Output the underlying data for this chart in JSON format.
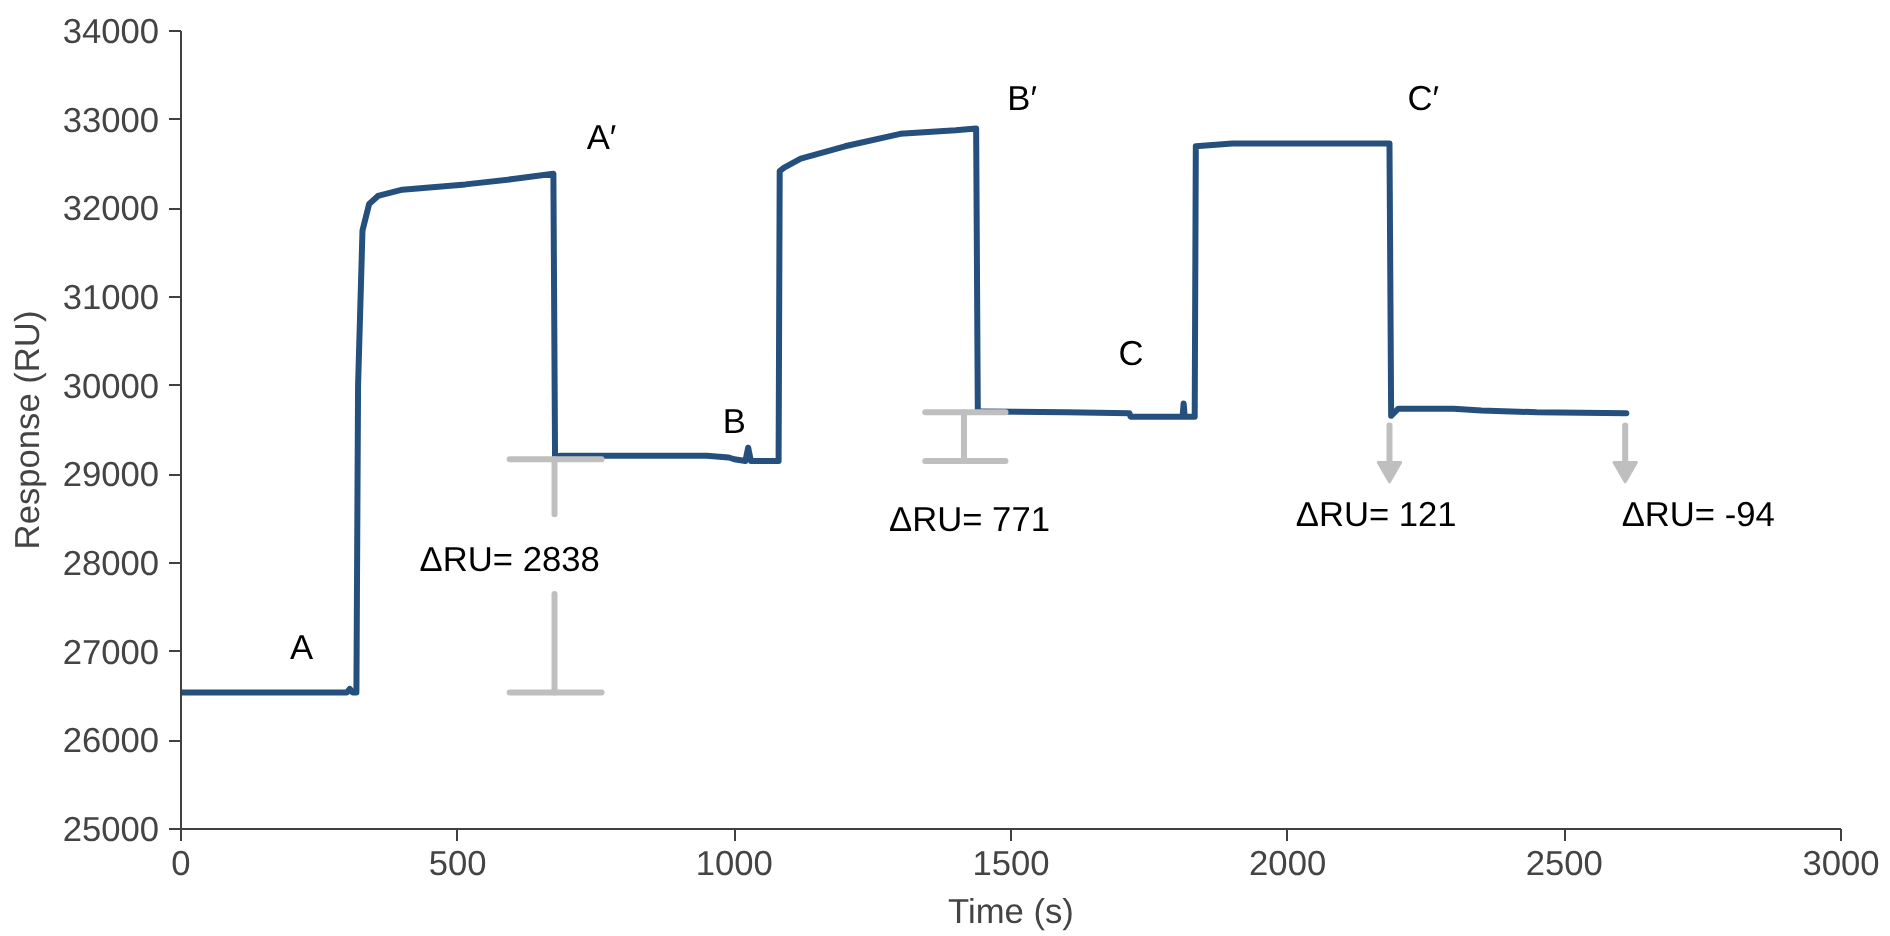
{
  "chart_data": {
    "type": "line",
    "xlabel": "Time (s)",
    "ylabel": "Response (RU)",
    "xlim": [
      0,
      3000
    ],
    "xticks": [
      0,
      500,
      1000,
      1500,
      2000,
      2500,
      3000
    ],
    "ylim": [
      25000,
      34000
    ],
    "yticks": [
      25000,
      26000,
      27000,
      28000,
      29000,
      30000,
      31000,
      32000,
      33000,
      34000
    ],
    "grid": false,
    "series": [
      {
        "color": "#25507e",
        "x": [
          0,
          300,
          305,
          310,
          317,
          320,
          328,
          340,
          356,
          400,
          514,
          600,
          673,
          676,
          685,
          800,
          950,
          990,
          1000,
          1020,
          1025,
          1030,
          1080,
          1082,
          1090,
          1120,
          1200,
          1300,
          1400,
          1437,
          1440,
          1450,
          1600,
          1714,
          1716,
          1800,
          1810,
          1812,
          1814,
          1832,
          1834,
          1900,
          2100,
          2184,
          2187,
          2200,
          2300,
          2350,
          2450,
          2612
        ],
        "values": [
          26540,
          26540,
          26580,
          26540,
          26540,
          30000,
          31750,
          32050,
          32140,
          32210,
          32270,
          32330,
          32390,
          29180,
          29210,
          29210,
          29210,
          29190,
          29170,
          29150,
          29300,
          29150,
          29150,
          32420,
          32460,
          32560,
          32700,
          32840,
          32880,
          32900,
          29710,
          29710,
          29700,
          29690,
          29650,
          29650,
          29650,
          29800,
          29650,
          29650,
          32700,
          32730,
          32730,
          32730,
          29660,
          29740,
          29740,
          29720,
          29700,
          29690
        ]
      },
      {
        "type": "line",
        "color": "#bfbfbf",
        "x": [
          594,
          760
        ],
        "values": [
          29170,
          29170
        ]
      },
      {
        "type": "line",
        "color": "#bfbfbf",
        "x": [
          675,
          675
        ],
        "values": [
          29170,
          28550
        ]
      },
      {
        "type": "line",
        "color": "#bfbfbf",
        "x": [
          675,
          675
        ],
        "values": [
          27650,
          26540
        ]
      },
      {
        "type": "line",
        "color": "#bfbfbf",
        "x": [
          594,
          760
        ],
        "values": [
          26540,
          26540
        ]
      },
      {
        "type": "line",
        "color": "#bfbfbf",
        "x": [
          1345,
          1490
        ],
        "values": [
          29700,
          29700
        ]
      },
      {
        "type": "line",
        "color": "#bfbfbf",
        "x": [
          1415,
          1415
        ],
        "values": [
          29700,
          29150
        ]
      },
      {
        "type": "line",
        "color": "#bfbfbf",
        "x": [
          1345,
          1490
        ],
        "values": [
          29150,
          29150
        ]
      },
      {
        "type": "line",
        "color": "#bfbfbf",
        "marker": "triangle",
        "x": [
          2184,
          2184
        ],
        "values": [
          29550,
          29060
        ]
      },
      {
        "type": "line",
        "color": "#bfbfbf",
        "marker": "triangle",
        "x": [
          2610,
          2610
        ],
        "values": [
          29550,
          29060
        ]
      }
    ],
    "annotations": [
      "A",
      "A′",
      "B",
      "B′",
      "C",
      "C′",
      "ΔRU= 2838",
      "ΔRU= 771",
      "ΔRU= 121",
      "ΔRU= -94"
    ]
  }
}
